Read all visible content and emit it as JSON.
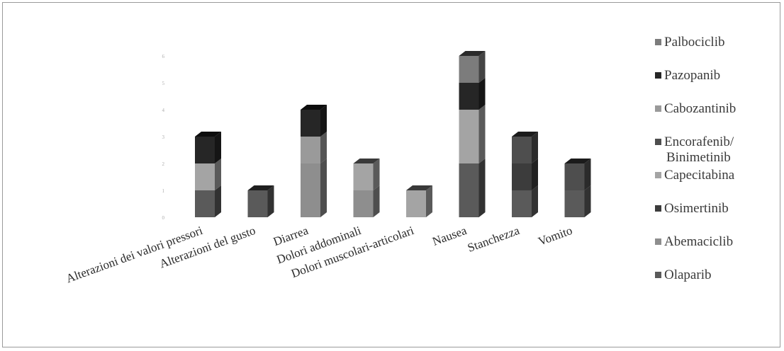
{
  "chart_data": {
    "type": "bar",
    "stacked": true,
    "three_d": true,
    "categories": [
      "Alterazioni dei valori pressori",
      "Alterazioni del gusto",
      "Diarrea",
      "Dolori addominali",
      "Dolori muscolari-articolari",
      "Nausea",
      "Stanchezza",
      "Vomito"
    ],
    "y_ticks": [
      "0",
      "1",
      "2",
      "3",
      "4",
      "5",
      "6"
    ],
    "ylim": [
      0,
      6
    ],
    "series": [
      {
        "name": "Olaparib",
        "color": "#5a5a5a",
        "values": [
          1,
          1,
          0,
          0,
          0,
          2,
          1,
          1
        ]
      },
      {
        "name": "Abemaciclib",
        "color": "#8e8e8e",
        "values": [
          0,
          0,
          2,
          1,
          0,
          0,
          0,
          0
        ]
      },
      {
        "name": "Osimertinib",
        "color": "#3c3c3c",
        "values": [
          0,
          0,
          0,
          0,
          0,
          0,
          1,
          0
        ]
      },
      {
        "name": "Capecitabina",
        "color": "#a4a4a4",
        "values": [
          1,
          0,
          0,
          1,
          1,
          2,
          0,
          0
        ]
      },
      {
        "name": "Encorafenib/ Binimetinib",
        "color": "#4e4e4e",
        "values": [
          0,
          0,
          0,
          0,
          0,
          0,
          1,
          1
        ]
      },
      {
        "name": "Cabozantinib",
        "color": "#9a9a9a",
        "values": [
          0,
          0,
          1,
          0,
          0,
          0,
          0,
          0
        ]
      },
      {
        "name": "Pazopanib",
        "color": "#262626",
        "values": [
          1,
          0,
          1,
          0,
          0,
          1,
          0,
          0
        ]
      },
      {
        "name": "Palbociclib",
        "color": "#7c7c7c",
        "values": [
          0,
          0,
          0,
          0,
          0,
          1,
          0,
          0
        ]
      }
    ],
    "legend_order": [
      "Palbociclib",
      "Pazopanib",
      "Cabozantinib",
      "Encorafenib/ Binimetinib",
      "Capecitabina",
      "Osimertinib",
      "Abemaciclib",
      "Olaparib"
    ],
    "legend_position": "right",
    "grid": false
  }
}
